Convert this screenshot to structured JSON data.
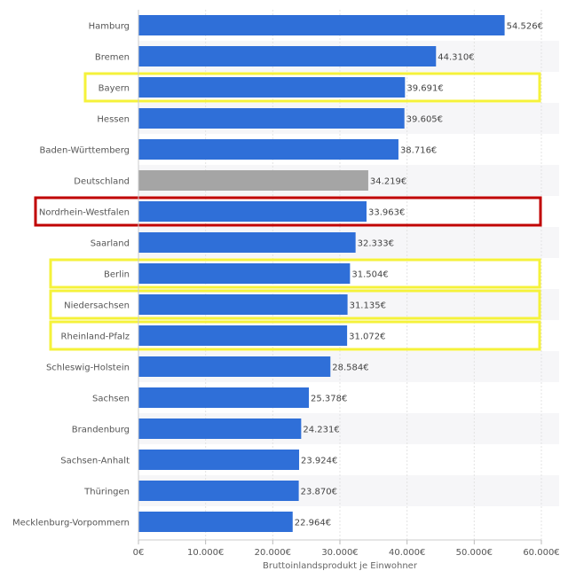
{
  "chart_data": {
    "type": "bar",
    "orientation": "horizontal",
    "title": "",
    "xlabel": "Bruttoinlandsprodukt je Einwohner",
    "ylabel": "",
    "xlim": [
      0,
      60000
    ],
    "grid": true,
    "ticks": [
      0,
      10000,
      20000,
      30000,
      40000,
      50000,
      60000
    ],
    "tick_labels": [
      "0€",
      "10.000€",
      "20.000€",
      "30.000€",
      "40.000€",
      "50.000€",
      "60.000€"
    ],
    "colors": {
      "default": "#2f6fd8",
      "national": "#a5a5a5",
      "highlight_yellow": "#f5f23a",
      "highlight_red": "#c00000"
    },
    "categories": [
      {
        "name": "Hamburg",
        "value": 54526,
        "label": "54.526€",
        "kind": "default",
        "highlight": ""
      },
      {
        "name": "Bremen",
        "value": 44310,
        "label": "44.310€",
        "kind": "default",
        "highlight": ""
      },
      {
        "name": "Bayern",
        "value": 39691,
        "label": "39.691€",
        "kind": "default",
        "highlight": "yellow"
      },
      {
        "name": "Hessen",
        "value": 39605,
        "label": "39.605€",
        "kind": "default",
        "highlight": ""
      },
      {
        "name": "Baden-Württemberg",
        "value": 38716,
        "label": "38.716€",
        "kind": "default",
        "highlight": ""
      },
      {
        "name": "Deutschland",
        "value": 34219,
        "label": "34.219€",
        "kind": "national",
        "highlight": ""
      },
      {
        "name": "Nordrhein-Westfalen",
        "value": 33963,
        "label": "33.963€",
        "kind": "default",
        "highlight": "red"
      },
      {
        "name": "Saarland",
        "value": 32333,
        "label": "32.333€",
        "kind": "default",
        "highlight": ""
      },
      {
        "name": "Berlin",
        "value": 31504,
        "label": "31.504€",
        "kind": "default",
        "highlight": "yellow"
      },
      {
        "name": "Niedersachsen",
        "value": 31135,
        "label": "31.135€",
        "kind": "default",
        "highlight": "yellow"
      },
      {
        "name": "Rheinland-Pfalz",
        "value": 31072,
        "label": "31.072€",
        "kind": "default",
        "highlight": "yellow"
      },
      {
        "name": "Schleswig-Holstein",
        "value": 28584,
        "label": "28.584€",
        "kind": "default",
        "highlight": ""
      },
      {
        "name": "Sachsen",
        "value": 25378,
        "label": "25.378€",
        "kind": "default",
        "highlight": ""
      },
      {
        "name": "Brandenburg",
        "value": 24231,
        "label": "24.231€",
        "kind": "default",
        "highlight": ""
      },
      {
        "name": "Sachsen-Anhalt",
        "value": 23924,
        "label": "23.924€",
        "kind": "default",
        "highlight": ""
      },
      {
        "name": "Thüringen",
        "value": 23870,
        "label": "23.870€",
        "kind": "default",
        "highlight": ""
      },
      {
        "name": "Mecklenburg-Vorpommern",
        "value": 22964,
        "label": "22.964€",
        "kind": "default",
        "highlight": ""
      }
    ]
  }
}
